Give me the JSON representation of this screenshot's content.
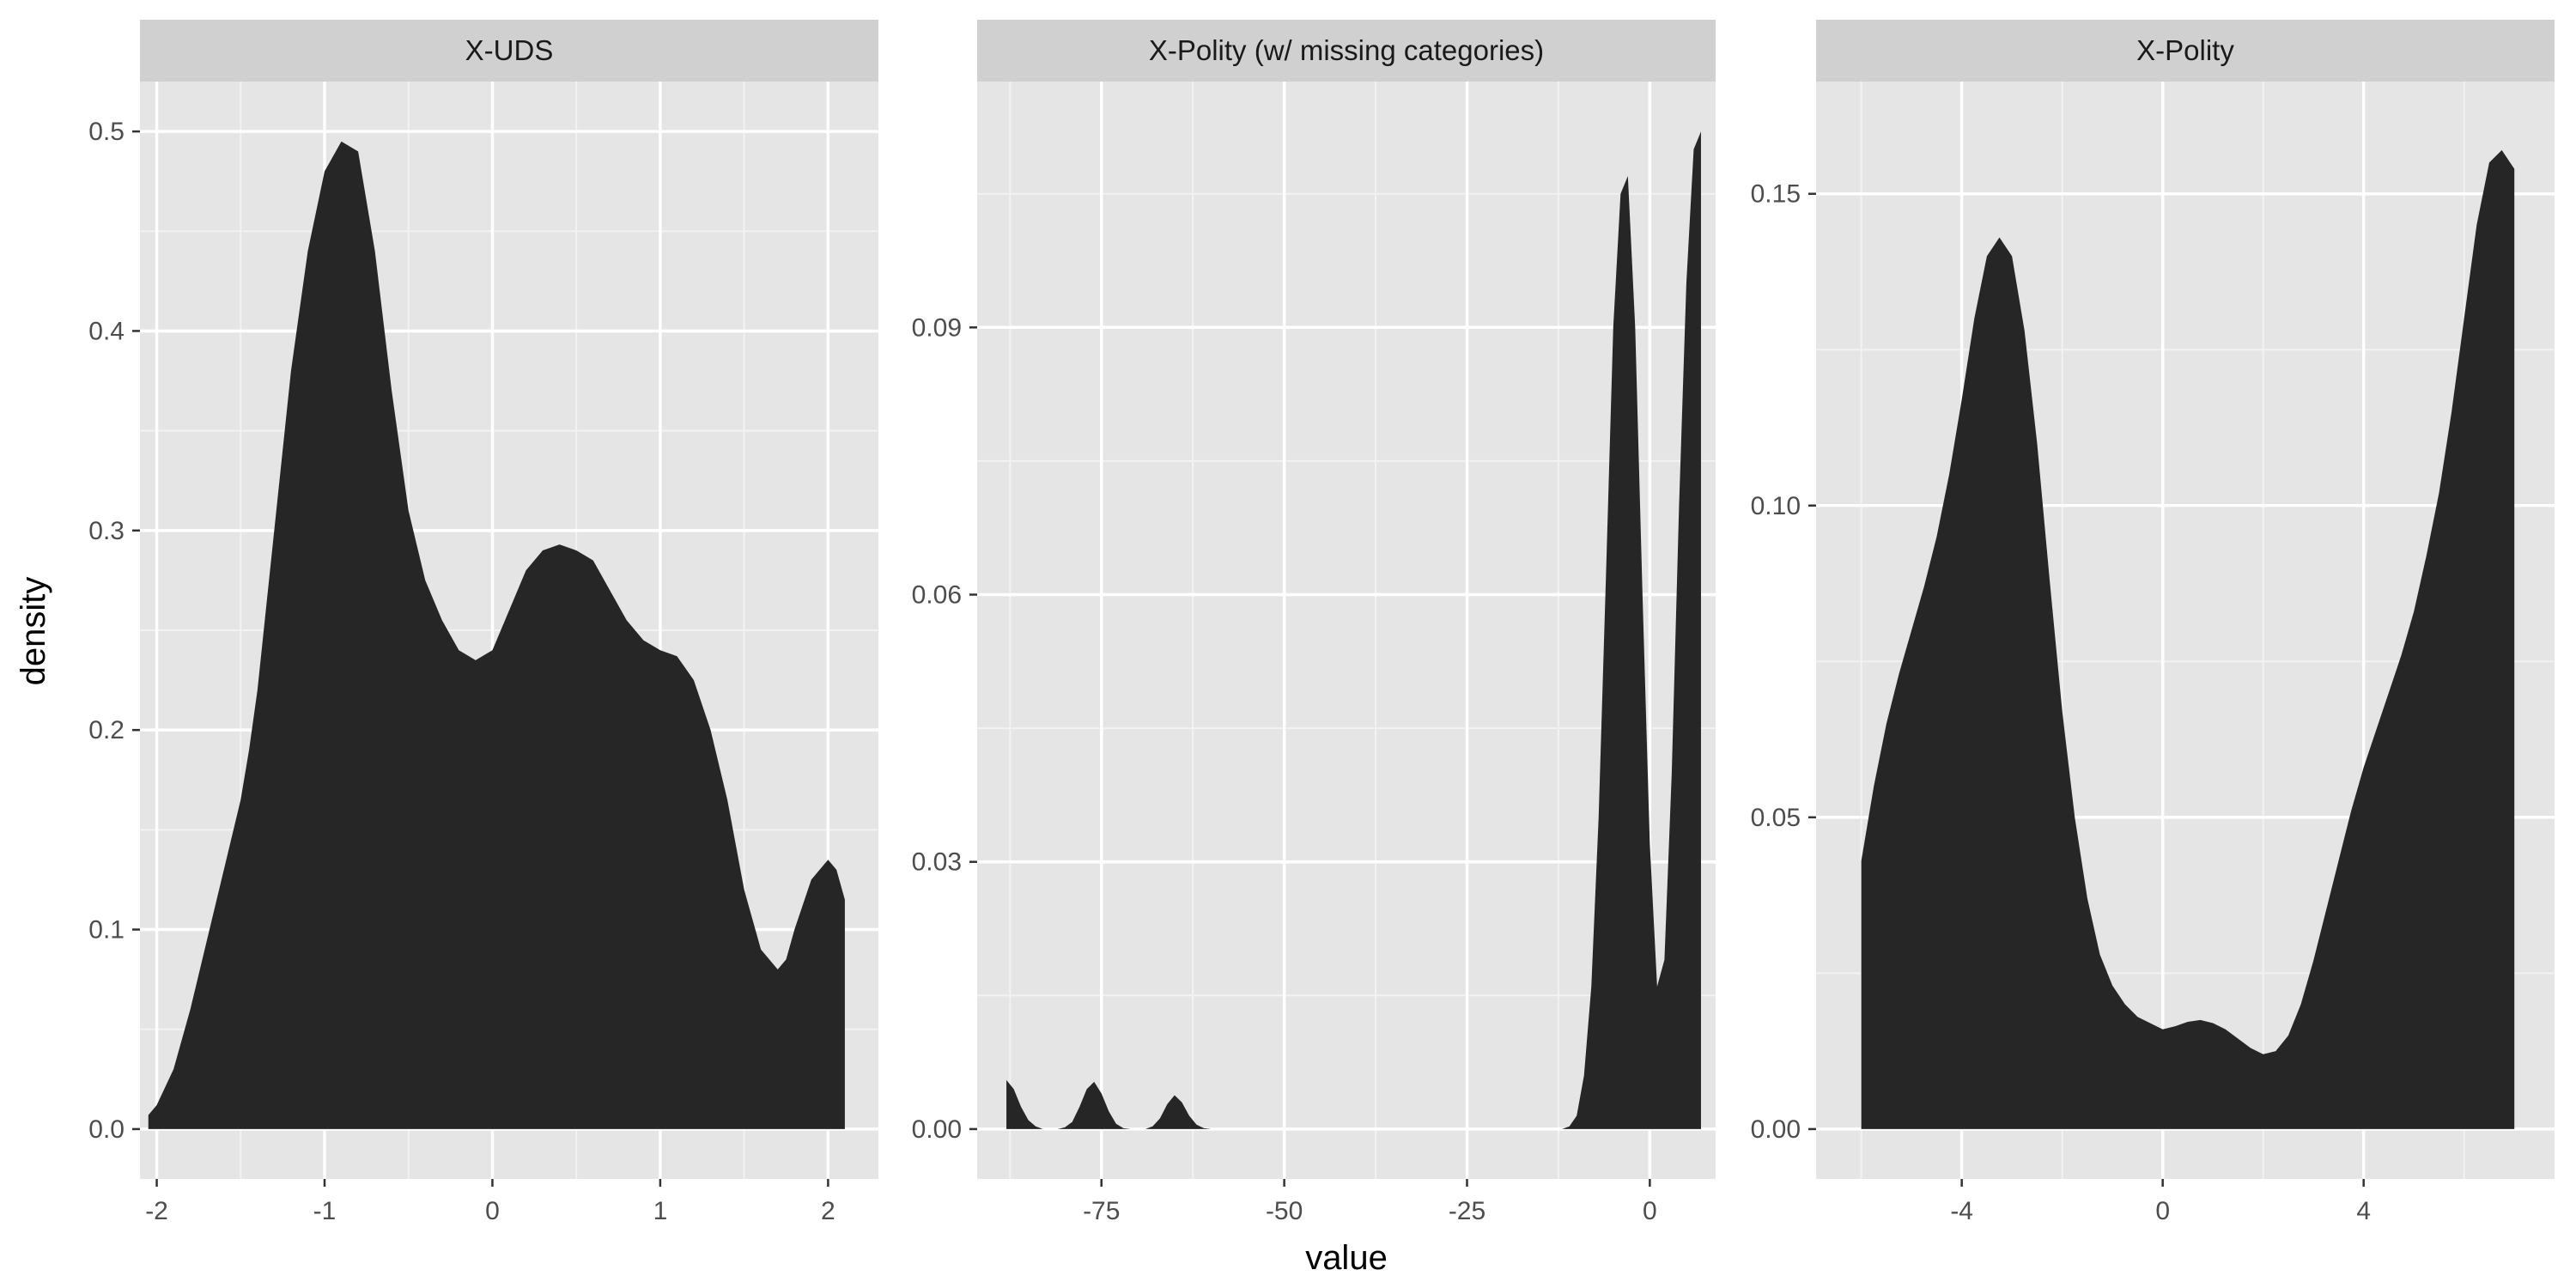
{
  "colors": {
    "panel_background": "#e5e5e5",
    "strip_background": "#d0d0d0",
    "major_grid": "#ffffff",
    "minor_grid": "#f2f2f2",
    "density_fill": "#262626",
    "tick_text": "#4d4d4d"
  },
  "axes": {
    "xlabel": "value",
    "ylabel": "density"
  },
  "chart_data": [
    {
      "type": "area",
      "title": "X-UDS",
      "xlim": [
        -2.1,
        2.3
      ],
      "ylim": [
        -0.025,
        0.525
      ],
      "x_ticks": [
        -2,
        -1,
        0,
        1,
        2
      ],
      "x_tick_labels": [
        "-2",
        "-1",
        "0",
        "1",
        "2"
      ],
      "y_ticks": [
        0.0,
        0.1,
        0.2,
        0.3,
        0.4,
        0.5
      ],
      "y_tick_labels": [
        "0.0",
        "0.1",
        "0.2",
        "0.3",
        "0.4",
        "0.5"
      ],
      "grid": true,
      "series": [
        {
          "x": [
            -2.05,
            -2.0,
            -1.9,
            -1.8,
            -1.7,
            -1.6,
            -1.5,
            -1.45,
            -1.4,
            -1.3,
            -1.2,
            -1.1,
            -1.0,
            -0.9,
            -0.8,
            -0.7,
            -0.6,
            -0.5,
            -0.4,
            -0.3,
            -0.2,
            -0.1,
            0.0,
            0.1,
            0.2,
            0.3,
            0.4,
            0.5,
            0.6,
            0.7,
            0.8,
            0.9,
            1.0,
            1.1,
            1.2,
            1.3,
            1.4,
            1.5,
            1.6,
            1.7,
            1.75,
            1.8,
            1.9,
            2.0,
            2.05,
            2.1
          ],
          "y": [
            0.007,
            0.012,
            0.03,
            0.06,
            0.095,
            0.13,
            0.165,
            0.19,
            0.22,
            0.3,
            0.38,
            0.44,
            0.48,
            0.495,
            0.49,
            0.44,
            0.37,
            0.31,
            0.275,
            0.255,
            0.24,
            0.235,
            0.24,
            0.26,
            0.28,
            0.29,
            0.293,
            0.29,
            0.285,
            0.27,
            0.255,
            0.245,
            0.24,
            0.237,
            0.225,
            0.2,
            0.165,
            0.12,
            0.09,
            0.08,
            0.085,
            0.1,
            0.125,
            0.135,
            0.13,
            0.115
          ]
        }
      ]
    },
    {
      "type": "area",
      "title": "X-Polity (w/ missing categories)",
      "xlim": [
        -92,
        9
      ],
      "ylim": [
        -0.0056,
        0.1176
      ],
      "x_ticks": [
        -75,
        -50,
        -25,
        0
      ],
      "x_tick_labels": [
        "-75",
        "-50",
        "-25",
        "0"
      ],
      "y_ticks": [
        0.0,
        0.03,
        0.06,
        0.09
      ],
      "y_tick_labels": [
        "0.00",
        "0.03",
        "0.06",
        "0.09"
      ],
      "grid": true,
      "series": [
        {
          "x": [
            -88,
            -87,
            -86,
            -85,
            -84,
            -83,
            -82,
            -81,
            -80,
            -79,
            -78,
            -77,
            -76,
            -75,
            -74,
            -73,
            -72,
            -71,
            -70,
            -69,
            -68,
            -67,
            -66,
            -65,
            -64,
            -63,
            -62,
            -61,
            -60,
            -15,
            -12,
            -11,
            -10,
            -9,
            -8,
            -7,
            -6,
            -5,
            -4,
            -3,
            -2,
            -1,
            0,
            1,
            2,
            3,
            4,
            5,
            6,
            7
          ],
          "y": [
            0.0055,
            0.0045,
            0.0025,
            0.001,
            0.0003,
            0.0,
            0.0,
            0.0,
            0.0002,
            0.0008,
            0.0025,
            0.0045,
            0.0053,
            0.004,
            0.002,
            0.0006,
            0.0001,
            0.0,
            0.0,
            0.0,
            0.0003,
            0.0012,
            0.0028,
            0.0038,
            0.003,
            0.0015,
            0.0005,
            0.0001,
            0.0,
            0.0,
            0.0,
            0.0003,
            0.0015,
            0.006,
            0.016,
            0.035,
            0.062,
            0.09,
            0.105,
            0.107,
            0.09,
            0.06,
            0.032,
            0.016,
            0.019,
            0.04,
            0.07,
            0.095,
            0.11,
            0.112
          ]
        }
      ]
    },
    {
      "type": "area",
      "title": "X-Polity",
      "xlim": [
        -6.9,
        7.8
      ],
      "ylim": [
        -0.008,
        0.168
      ],
      "x_ticks": [
        -4,
        0,
        4
      ],
      "x_tick_labels": [
        "-4",
        "0",
        "4"
      ],
      "y_ticks": [
        0.0,
        0.05,
        0.1,
        0.15
      ],
      "y_tick_labels": [
        "0.00",
        "0.05",
        "0.10",
        "0.15"
      ],
      "grid": true,
      "series": [
        {
          "x": [
            -6.0,
            -5.75,
            -5.5,
            -5.25,
            -5.0,
            -4.75,
            -4.5,
            -4.25,
            -4.0,
            -3.75,
            -3.5,
            -3.25,
            -3.0,
            -2.75,
            -2.5,
            -2.25,
            -2.0,
            -1.75,
            -1.5,
            -1.25,
            -1.0,
            -0.75,
            -0.5,
            -0.25,
            0.0,
            0.25,
            0.5,
            0.75,
            1.0,
            1.25,
            1.5,
            1.75,
            2.0,
            2.25,
            2.5,
            2.75,
            3.0,
            3.25,
            3.5,
            3.75,
            4.0,
            4.25,
            4.5,
            4.75,
            5.0,
            5.25,
            5.5,
            5.75,
            6.0,
            6.25,
            6.5,
            6.75,
            7.0
          ],
          "y": [
            0.043,
            0.055,
            0.065,
            0.073,
            0.08,
            0.087,
            0.095,
            0.105,
            0.117,
            0.13,
            0.14,
            0.143,
            0.14,
            0.128,
            0.11,
            0.088,
            0.067,
            0.05,
            0.037,
            0.028,
            0.023,
            0.02,
            0.018,
            0.017,
            0.016,
            0.0165,
            0.0172,
            0.0175,
            0.017,
            0.016,
            0.0145,
            0.013,
            0.012,
            0.0125,
            0.015,
            0.02,
            0.027,
            0.035,
            0.043,
            0.051,
            0.058,
            0.064,
            0.07,
            0.076,
            0.083,
            0.092,
            0.102,
            0.115,
            0.13,
            0.145,
            0.155,
            0.157,
            0.154
          ]
        }
      ]
    }
  ]
}
